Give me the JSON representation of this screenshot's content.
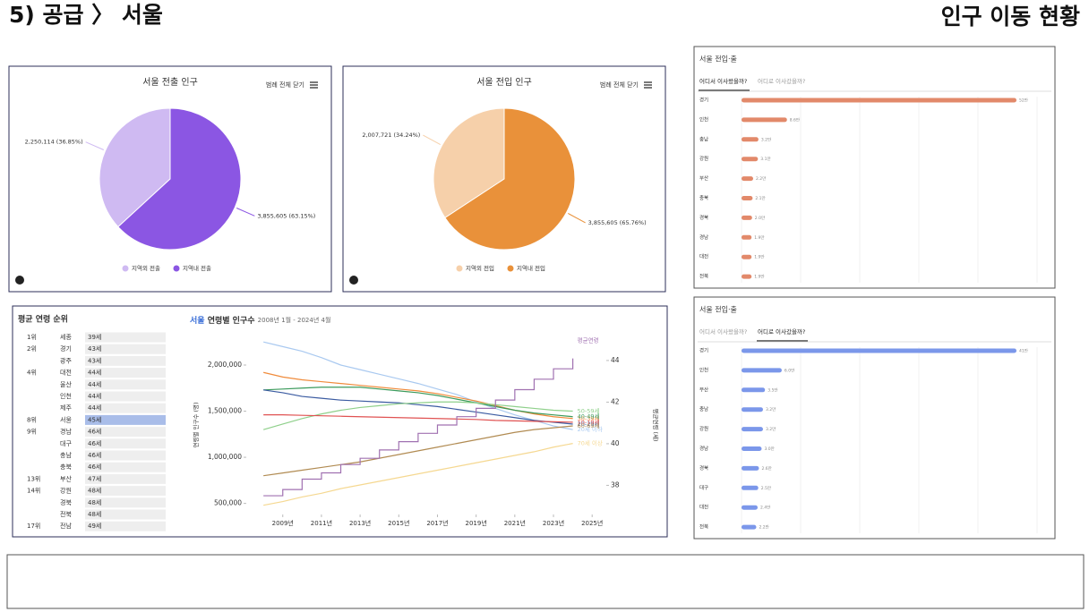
{
  "header": {
    "left": "5) 공급 〉 서울",
    "right": "인구 이동 현황"
  },
  "table": {
    "title": "평균 연령 순위",
    "highlight_row": 7,
    "rows": [
      [
        "1위",
        "세종",
        "39세"
      ],
      [
        "2위",
        "경기",
        "43세"
      ],
      [
        null,
        "광주",
        "43세"
      ],
      [
        "4위",
        "대전",
        "44세"
      ],
      [
        null,
        "울산",
        "44세"
      ],
      [
        null,
        "인천",
        "44세"
      ],
      [
        null,
        "제주",
        "44세"
      ],
      [
        "8위",
        "서울",
        "45세"
      ],
      [
        "9위",
        "경남",
        "46세"
      ],
      [
        null,
        "대구",
        "46세"
      ],
      [
        null,
        "충남",
        "46세"
      ],
      [
        null,
        "충북",
        "46세"
      ],
      [
        "13위",
        "부산",
        "47세"
      ],
      [
        "14위",
        "강원",
        "48세"
      ],
      [
        null,
        "경북",
        "48세"
      ],
      [
        null,
        "전북",
        "48세"
      ],
      [
        "17위",
        "전남",
        "49세"
      ]
    ]
  },
  "chart_data": [
    {
      "type": "pie",
      "title": "서울 전출 인구",
      "button": "범례 전체 닫기",
      "categories": [
        "지역외 전출",
        "지역내 전출"
      ],
      "values": [
        2250114,
        3855605
      ],
      "value_labels": [
        "2,250,114 (36.85%)",
        "3,855,605 (63.15%)"
      ],
      "colors": [
        "#cfbaf2",
        "#8b56e3"
      ]
    },
    {
      "type": "pie",
      "title": "서울 전입 인구",
      "button": "범례 전체 닫기",
      "categories": [
        "지역외 전입",
        "지역내 전입"
      ],
      "values": [
        2007721,
        3855605
      ],
      "value_labels": [
        "2,007,721 (34.24%)",
        "3,855,605 (65.76%)"
      ],
      "colors": [
        "#f6d0aa",
        "#e9913a"
      ]
    },
    {
      "type": "hbar",
      "title": "서울 전입·출",
      "tabs": [
        "어디서 이사왔을까?",
        "어디로 이사갔을까?"
      ],
      "active_tab": 0,
      "color": "#e2896a",
      "categories": [
        "경기",
        "인천",
        "충남",
        "강원",
        "부산",
        "충북",
        "경북",
        "경남",
        "대전",
        "전북"
      ],
      "values": [
        52,
        8.6,
        3.2,
        3.1,
        2.2,
        2.1,
        2.0,
        1.9,
        1.9,
        1.9
      ],
      "value_labels": [
        "52만",
        "8.6만",
        "3.2만",
        "3.1만",
        "2.2만",
        "2.1만",
        "2.0만",
        "1.9만",
        "1.9만",
        "1.9만"
      ]
    },
    {
      "type": "hbar",
      "title": "서울 전입·출",
      "tabs": [
        "어디서 이사왔을까?",
        "어디로 이사갔을까?"
      ],
      "active_tab": 1,
      "color": "#7b97ea",
      "categories": [
        "경기",
        "인천",
        "부산",
        "충남",
        "강원",
        "경남",
        "경북",
        "대구",
        "대전",
        "전북"
      ],
      "values": [
        41,
        6.0,
        3.5,
        3.2,
        3.2,
        3.0,
        2.6,
        2.5,
        2.4,
        2.2
      ],
      "value_labels": [
        "41만",
        "6.0만",
        "3.5만",
        "3.2만",
        "3.2만",
        "3.0만",
        "2.6만",
        "2.5만",
        "2.4만",
        "2.2만"
      ]
    },
    {
      "type": "line",
      "title_region": "서울",
      "title": "연령별 인구수",
      "subtitle": "2008년 1월 - 2024년 4월",
      "ylabel": "연령별 인구수 (명)",
      "y2label": "평균연령 (세)",
      "x": [
        2008,
        2009,
        2010,
        2011,
        2012,
        2013,
        2014,
        2015,
        2016,
        2017,
        2018,
        2019,
        2020,
        2021,
        2022,
        2023,
        2024
      ],
      "xlim": [
        2007.9,
        2025.5
      ],
      "xticks": [
        {
          "value": 2009,
          "label": "2009년"
        },
        {
          "value": 2011,
          "label": "2011년"
        },
        {
          "value": 2013,
          "label": "2013년"
        },
        {
          "value": 2015,
          "label": "2015년"
        },
        {
          "value": 2017,
          "label": "2017년"
        },
        {
          "value": 2019,
          "label": "2019년"
        },
        {
          "value": 2021,
          "label": "2021년"
        },
        {
          "value": 2023,
          "label": "2023년"
        },
        {
          "value": 2025,
          "label": "2025년"
        }
      ],
      "ylim": [
        380000,
        2320000
      ],
      "yticks": [
        {
          "value": 500000,
          "label": "500,000"
        },
        {
          "value": 1000000,
          "label": "1,000,000"
        },
        {
          "value": 1500000,
          "label": "1,500,000"
        },
        {
          "value": 2000000,
          "label": "2,000,000"
        }
      ],
      "y2lim": [
        36.6,
        45.2
      ],
      "y2ticks": [
        38,
        40,
        42,
        44
      ],
      "grid": false,
      "series": [
        {
          "name": "20세 이하",
          "color": "#a9c9f0",
          "values": [
            2250000,
            2200000,
            2150000,
            2080000,
            2000000,
            1950000,
            1900000,
            1850000,
            1800000,
            1740000,
            1680000,
            1600000,
            1530000,
            1460000,
            1400000,
            1340000,
            1300000
          ]
        },
        {
          "name": "30-39세",
          "color": "#f08b3b",
          "values": [
            1920000,
            1870000,
            1840000,
            1820000,
            1800000,
            1780000,
            1760000,
            1740000,
            1720000,
            1690000,
            1650000,
            1610000,
            1560000,
            1510000,
            1470000,
            1440000,
            1420000
          ]
        },
        {
          "name": "40-49세",
          "color": "#3b9a5b",
          "values": [
            1730000,
            1740000,
            1750000,
            1760000,
            1760000,
            1760000,
            1740000,
            1720000,
            1700000,
            1670000,
            1630000,
            1590000,
            1550000,
            1510000,
            1480000,
            1460000,
            1440000
          ]
        },
        {
          "name": "20-29세",
          "color": "#3b5ba1",
          "values": [
            1730000,
            1700000,
            1660000,
            1640000,
            1620000,
            1610000,
            1600000,
            1590000,
            1570000,
            1550000,
            1520000,
            1490000,
            1460000,
            1430000,
            1400000,
            1380000,
            1360000
          ]
        },
        {
          "name": "50-59세",
          "color": "#8fd08b",
          "values": [
            1300000,
            1360000,
            1420000,
            1470000,
            1510000,
            1540000,
            1560000,
            1580000,
            1590000,
            1600000,
            1600000,
            1590000,
            1570000,
            1550000,
            1530000,
            1510000,
            1500000
          ]
        },
        {
          "name": "10-19세",
          "color": "#e05252",
          "values": [
            1460000,
            1460000,
            1455000,
            1450000,
            1445000,
            1440000,
            1435000,
            1430000,
            1425000,
            1420000,
            1415000,
            1410000,
            1400000,
            1395000,
            1390000,
            1385000,
            1380000
          ]
        },
        {
          "name": "60-69세",
          "color": "#b18b52",
          "values": [
            800000,
            830000,
            860000,
            890000,
            920000,
            950000,
            990000,
            1030000,
            1070000,
            1110000,
            1150000,
            1190000,
            1230000,
            1270000,
            1300000,
            1320000,
            1340000
          ]
        },
        {
          "name": "70세 이상",
          "color": "#f5d891",
          "values": [
            480000,
            520000,
            570000,
            610000,
            660000,
            700000,
            740000,
            780000,
            820000,
            860000,
            900000,
            940000,
            980000,
            1020000,
            1060000,
            1110000,
            1150000
          ]
        },
        {
          "name": "평균연령",
          "color": "#a071b1",
          "axis": "y2",
          "values": [
            37.5,
            37.8,
            38.3,
            38.6,
            39.0,
            39.3,
            39.7,
            40.1,
            40.5,
            40.9,
            41.3,
            41.7,
            42.1,
            42.6,
            43.1,
            43.6,
            44.1
          ]
        }
      ]
    }
  ]
}
